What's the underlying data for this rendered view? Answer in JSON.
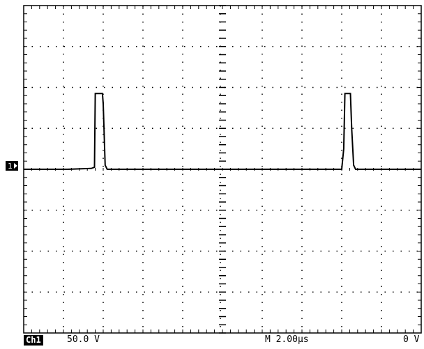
{
  "chart_data": {
    "type": "line",
    "title": "",
    "xlabel": "",
    "ylabel": "",
    "divisions": {
      "x": 10,
      "y": 8
    },
    "ylim": [
      -4,
      4
    ],
    "xlim": [
      0,
      10
    ],
    "grid": true,
    "series": [
      {
        "points": [
          [
            0,
            0.0
          ],
          [
            1.1,
            0.0
          ],
          [
            1.7,
            0.02
          ],
          [
            1.78,
            0.05
          ],
          [
            1.8,
            1.85
          ],
          [
            1.98,
            1.85
          ],
          [
            2.0,
            1.6
          ],
          [
            2.05,
            0.1
          ],
          [
            2.1,
            0.0
          ],
          [
            3.5,
            0.0
          ],
          [
            5.0,
            0.0
          ],
          [
            6.5,
            0.0
          ],
          [
            8.0,
            0.0
          ],
          [
            8.05,
            0.5
          ],
          [
            8.08,
            1.85
          ],
          [
            8.22,
            1.85
          ],
          [
            8.25,
            1.0
          ],
          [
            8.3,
            0.1
          ],
          [
            8.35,
            0.0
          ],
          [
            10,
            0.0
          ]
        ]
      }
    ]
  },
  "readout": {
    "channel": "Ch1",
    "volts_per_div": "50.0 V",
    "timebase": "M 2.00µs",
    "trigger_level": "0 V"
  },
  "colors": {
    "trace": "#000000",
    "grid": "#000000",
    "background": "#ffffff"
  }
}
